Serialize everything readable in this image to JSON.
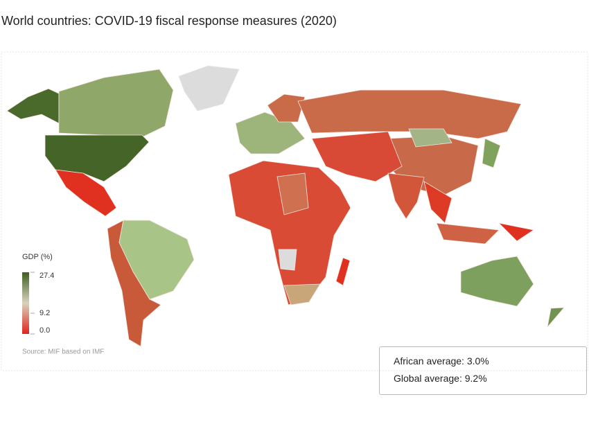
{
  "title": "World countries: COVID-19 fiscal response measures (2020)",
  "legend": {
    "title": "GDP (%)",
    "range": [
      0,
      27.4
    ],
    "ticks": [
      27.4,
      9.2,
      {
        "value": 0,
        "label": "0.0"
      }
    ],
    "colors": [
      "#e0251b",
      "#d9d2bd",
      "#3e5f22"
    ]
  },
  "source": "Source: MIF based on IMF",
  "summary": [
    "African average: 3.0%",
    "Global average: 9.2%"
  ]
}
